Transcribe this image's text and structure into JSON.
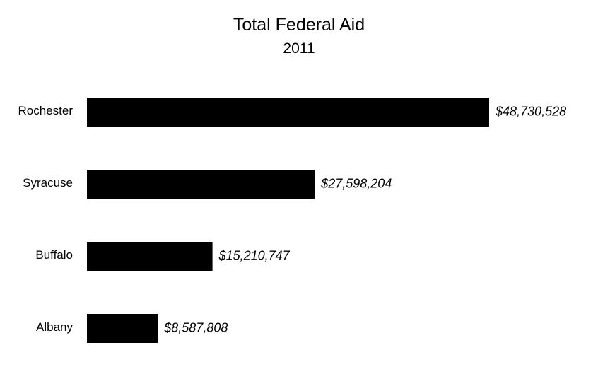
{
  "chart_data": {
    "type": "bar",
    "orientation": "horizontal",
    "title": "Total Federal Aid",
    "subtitle": "2011",
    "categories": [
      "Rochester",
      "Syracuse",
      "Buffalo",
      "Albany"
    ],
    "values": [
      48730528,
      27598204,
      15210747,
      8587808
    ],
    "value_labels": [
      "$48,730,528",
      "$27,598,204",
      "$15,210,747",
      "$8,587,808"
    ],
    "xlim": [
      0,
      48730528
    ],
    "xlabel": "",
    "ylabel": "",
    "grid": false,
    "legend": "none",
    "bar_color": "#000000"
  }
}
